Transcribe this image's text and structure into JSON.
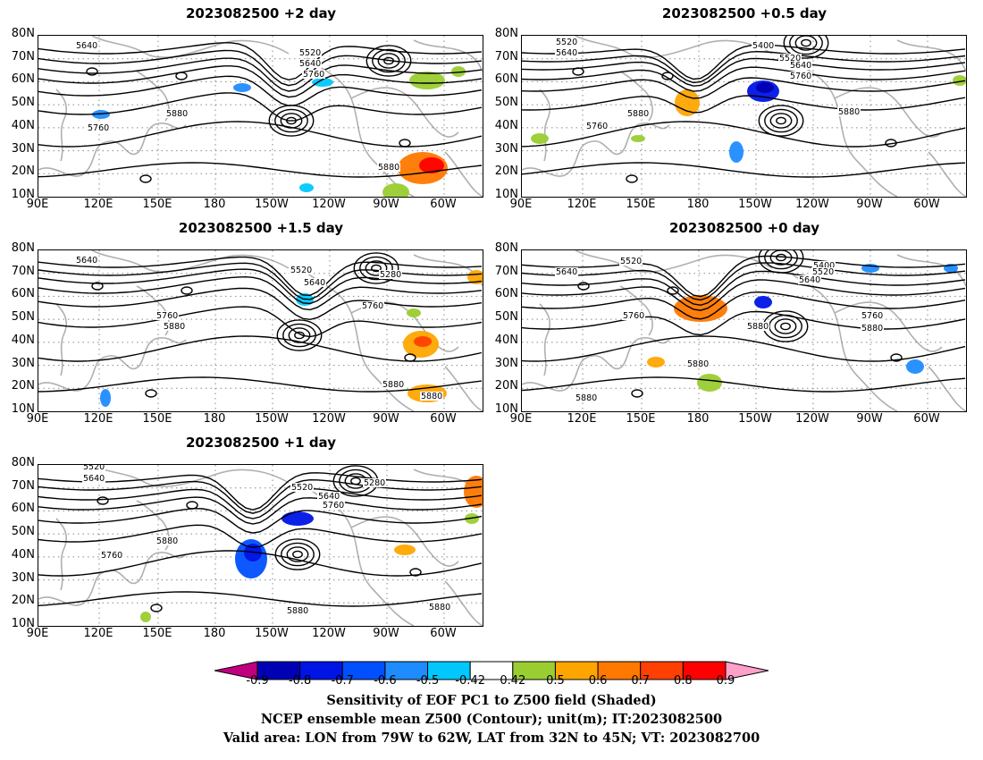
{
  "panels": [
    {
      "title": "2023082500 +2 day"
    },
    {
      "title": "2023082500 +0.5 day"
    },
    {
      "title": "2023082500 +1.5 day"
    },
    {
      "title": "2023082500 +0 day"
    },
    {
      "title": "2023082500 +1 day"
    }
  ],
  "lat_ticks": [
    "80N",
    "70N",
    "60N",
    "50N",
    "40N",
    "30N",
    "20N",
    "10N"
  ],
  "lon_ticks": [
    "90E",
    "120E",
    "150E",
    "180",
    "150W",
    "120W",
    "90W",
    "60W"
  ],
  "colorbar": {
    "labels": [
      "-0.9",
      "-0.8",
      "-0.7",
      "-0.6",
      "-0.5",
      "-0.42",
      "0.42",
      "0.5",
      "0.6",
      "0.7",
      "0.8",
      "0.9"
    ],
    "colors": [
      "#c0007f",
      "#0000b4",
      "#0014e6",
      "#0050ff",
      "#1e8cff",
      "#00c8ff",
      "#ffffff",
      "#9acd32",
      "#ffa500",
      "#ff7800",
      "#ff4000",
      "#ff0000",
      "#ffa0c8"
    ]
  },
  "captions": [
    "Sensitivity of EOF PC1 to Z500 field (Shaded)",
    "NCEP ensemble mean Z500 (Contour); unit(m); IT:2023082500",
    "Valid area: LON from 79W to 62W, LAT from 32N to 45N; VT: 2023082700"
  ],
  "contour_labels": {
    "p0": [
      "5640",
      "5520",
      "5640",
      "5760",
      "5880",
      "5760",
      "5880"
    ],
    "p1": [
      "5520",
      "5640",
      "5400",
      "5520",
      "5640",
      "5760",
      "5880",
      "5760",
      "5880"
    ],
    "p2": [
      "5640",
      "5520",
      "5640",
      "5280",
      "5760",
      "5760",
      "5880",
      "5880",
      "5880"
    ],
    "p3": [
      "5640",
      "5520",
      "5400",
      "5520",
      "5640",
      "5760",
      "5760",
      "5880",
      "5880",
      "5880",
      "5880"
    ],
    "p4": [
      "5520",
      "5640",
      "5520",
      "5640",
      "5280",
      "5760",
      "5880",
      "5760",
      "5880",
      "5880"
    ]
  }
}
